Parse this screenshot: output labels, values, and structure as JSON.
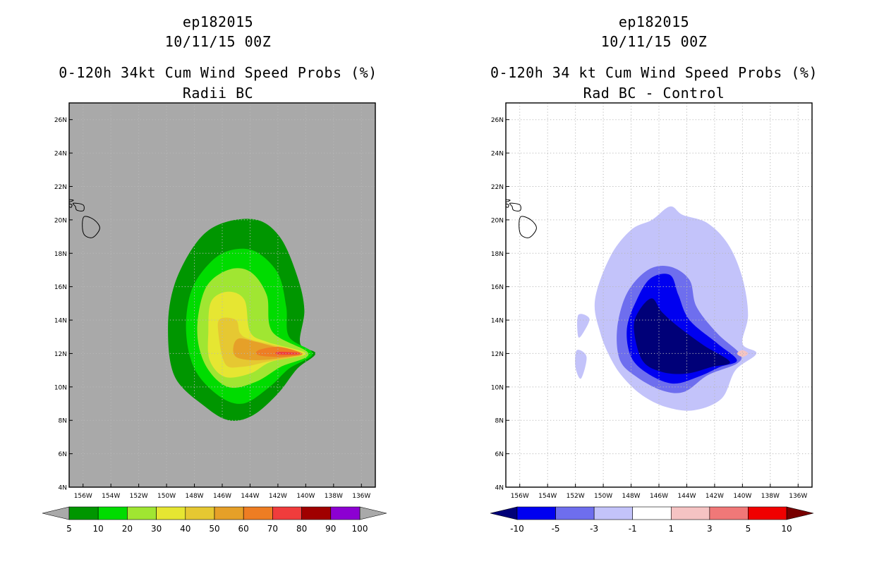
{
  "chart_data": [
    {
      "type": "contour",
      "title_lines": [
        "ep182015",
        "10/11/15 00Z",
        "0-120h 34kt Cum Wind Speed Probs (%)",
        "Radii BC"
      ],
      "xlabel": "",
      "ylabel": "",
      "xlim": [
        -157,
        -135
      ],
      "ylim": [
        4,
        27
      ],
      "x_tick_labels": [
        "156W",
        "154W",
        "152W",
        "150W",
        "148W",
        "146W",
        "144W",
        "142W",
        "140W",
        "138W",
        "136W"
      ],
      "y_tick_labels": [
        "4N",
        "6N",
        "8N",
        "10N",
        "12N",
        "14N",
        "16N",
        "18N",
        "20N",
        "22N",
        "24N",
        "26N"
      ],
      "background": "#a9a9a9",
      "colorbar": {
        "labels": [
          "5",
          "10",
          "20",
          "30",
          "40",
          "50",
          "60",
          "70",
          "80",
          "90",
          "100"
        ],
        "colors": [
          "#009600",
          "#00dc00",
          "#a0e632",
          "#e6e632",
          "#e6c832",
          "#e6a028",
          "#ee7d23",
          "#f03c3c",
          "#a00000",
          "#8c00d2"
        ],
        "end_arrow_color": "#a9a9a9"
      },
      "contours": [
        {
          "level": 5,
          "color": "#009600",
          "points": [
            [
              -149.9,
              13.5
            ],
            [
              -149.4,
              16.2
            ],
            [
              -147.8,
              18.7
            ],
            [
              -146.0,
              19.8
            ],
            [
              -143.5,
              20.0
            ],
            [
              -141.8,
              18.9
            ],
            [
              -140.6,
              16.6
            ],
            [
              -140.1,
              14.6
            ],
            [
              -140.4,
              12.6
            ],
            [
              -139.3,
              12.0
            ],
            [
              -140.6,
              11.1
            ],
            [
              -142.0,
              9.6
            ],
            [
              -143.8,
              8.3
            ],
            [
              -145.5,
              8.0
            ],
            [
              -147.2,
              8.8
            ],
            [
              -149.4,
              10.6
            ]
          ]
        },
        {
          "level": 10,
          "color": "#00dc00",
          "points": [
            [
              -148.6,
              13.4
            ],
            [
              -148.2,
              15.8
            ],
            [
              -146.8,
              17.5
            ],
            [
              -145.3,
              18.2
            ],
            [
              -143.6,
              18.1
            ],
            [
              -142.0,
              16.8
            ],
            [
              -141.4,
              14.8
            ],
            [
              -141.2,
              13.0
            ],
            [
              -139.5,
              12.0
            ],
            [
              -141.2,
              11.1
            ],
            [
              -142.6,
              10.0
            ],
            [
              -144.5,
              9.0
            ],
            [
              -146.3,
              9.5
            ],
            [
              -148.0,
              11.1
            ]
          ]
        },
        {
          "level": 20,
          "color": "#a0e632",
          "points": [
            [
              -147.8,
              13.4
            ],
            [
              -147.2,
              15.9
            ],
            [
              -145.6,
              17.0
            ],
            [
              -144.0,
              16.9
            ],
            [
              -142.8,
              15.5
            ],
            [
              -142.4,
              13.3
            ],
            [
              -139.8,
              12.0
            ],
            [
              -141.8,
              11.2
            ],
            [
              -143.6,
              10.3
            ],
            [
              -145.6,
              10.0
            ],
            [
              -147.2,
              11.3
            ]
          ]
        },
        {
          "level": 30,
          "color": "#e6e632",
          "points": [
            [
              -147.0,
              13.3
            ],
            [
              -146.8,
              15.1
            ],
            [
              -145.6,
              15.7
            ],
            [
              -144.4,
              15.2
            ],
            [
              -144.0,
              13.3
            ],
            [
              -142.8,
              12.7
            ],
            [
              -140.0,
              12.0
            ],
            [
              -142.5,
              11.5
            ],
            [
              -144.0,
              10.8
            ],
            [
              -145.8,
              10.6
            ],
            [
              -146.9,
              11.6
            ]
          ]
        },
        {
          "level": 40,
          "color": "#e6c832",
          "points": [
            [
              -146.3,
              13.4
            ],
            [
              -146.1,
              14.1
            ],
            [
              -145.0,
              14.0
            ],
            [
              -144.7,
              13.2
            ],
            [
              -143.8,
              12.8
            ],
            [
              -140.2,
              12.0
            ],
            [
              -142.8,
              11.5
            ],
            [
              -144.6,
              11.2
            ],
            [
              -145.8,
              11.4
            ]
          ]
        },
        {
          "level": 50,
          "color": "#e6a028",
          "points": [
            [
              -145.2,
              12.4
            ],
            [
              -144.8,
              12.9
            ],
            [
              -143.6,
              12.7
            ],
            [
              -142.2,
              12.4
            ],
            [
              -140.3,
              12.0
            ],
            [
              -142.0,
              11.7
            ],
            [
              -143.8,
              11.6
            ],
            [
              -145.0,
              11.8
            ]
          ]
        },
        {
          "level": 60,
          "color": "#ee7d23",
          "points": [
            [
              -143.4,
              12.2
            ],
            [
              -142.0,
              12.4
            ],
            [
              -140.5,
              12.1
            ],
            [
              -140.4,
              11.9
            ],
            [
              -142.0,
              11.8
            ],
            [
              -143.4,
              11.9
            ]
          ]
        },
        {
          "level": 70,
          "color": "#f03c3c",
          "points": [
            [
              -142.0,
              12.1
            ],
            [
              -140.6,
              12.05
            ],
            [
              -140.6,
              11.95
            ],
            [
              -142.0,
              11.95
            ]
          ]
        }
      ]
    },
    {
      "type": "contour",
      "title_lines": [
        "ep182015",
        "10/11/15 00Z",
        "0-120h 34 kt Cum Wind Speed Probs (%)",
        "Rad BC - Control"
      ],
      "xlabel": "",
      "ylabel": "",
      "xlim": [
        -157,
        -135
      ],
      "ylim": [
        4,
        27
      ],
      "x_tick_labels": [
        "156W",
        "154W",
        "152W",
        "150W",
        "148W",
        "146W",
        "144W",
        "142W",
        "140W",
        "138W",
        "136W"
      ],
      "y_tick_labels": [
        "4N",
        "6N",
        "8N",
        "10N",
        "12N",
        "14N",
        "16N",
        "18N",
        "20N",
        "22N",
        "24N",
        "26N"
      ],
      "background": "#ffffff",
      "colorbar": {
        "labels": [
          "-10",
          "-5",
          "-3",
          "-1",
          "1",
          "3",
          "5",
          "10"
        ],
        "colors": [
          "#0000f0",
          "#6e6eee",
          "#c3c3fa",
          "#ffffff",
          "#f5c3c3",
          "#f07878",
          "#f00000"
        ],
        "left_arrow_color": "#000078",
        "right_arrow_color": "#780000"
      },
      "contours": [
        {
          "level": -1,
          "color": "#c3c3fa",
          "points": [
            [
              -150.6,
              15.2
            ],
            [
              -149.5,
              17.8
            ],
            [
              -148.0,
              19.4
            ],
            [
              -146.5,
              20.0
            ],
            [
              -145.2,
              20.8
            ],
            [
              -144.3,
              20.3
            ],
            [
              -142.5,
              19.8
            ],
            [
              -141.0,
              18.5
            ],
            [
              -140.0,
              16.5
            ],
            [
              -139.6,
              14.3
            ],
            [
              -140.0,
              12.6
            ],
            [
              -139.0,
              12.0
            ],
            [
              -140.5,
              11.0
            ],
            [
              -141.5,
              9.3
            ],
            [
              -143.5,
              8.6
            ],
            [
              -145.5,
              8.8
            ],
            [
              -147.2,
              9.5
            ],
            [
              -148.5,
              10.5
            ],
            [
              -149.4,
              11.6
            ],
            [
              -150.2,
              13.2
            ]
          ]
        },
        {
          "level": -1,
          "color": "#c3c3fa",
          "points": [
            [
              -151.8,
              14.3
            ],
            [
              -151.0,
              14.1
            ],
            [
              -151.4,
              13.3
            ],
            [
              -151.8,
              13.0
            ]
          ]
        },
        {
          "level": -1,
          "color": "#c3c3fa",
          "points": [
            [
              -151.9,
              12.2
            ],
            [
              -151.2,
              11.8
            ],
            [
              -151.6,
              10.5
            ],
            [
              -152.0,
              11.2
            ]
          ]
        },
        {
          "level": -3,
          "color": "#6e6eee",
          "points": [
            [
              -149.0,
              13.5
            ],
            [
              -148.3,
              15.6
            ],
            [
              -146.8,
              17.0
            ],
            [
              -145.2,
              17.2
            ],
            [
              -143.8,
              16.4
            ],
            [
              -143.3,
              14.8
            ],
            [
              -141.8,
              13.2
            ],
            [
              -140.2,
              12.0
            ],
            [
              -140.4,
              11.4
            ],
            [
              -142.5,
              10.7
            ],
            [
              -144.2,
              9.7
            ],
            [
              -145.8,
              9.8
            ],
            [
              -147.6,
              10.6
            ],
            [
              -148.8,
              11.6
            ]
          ]
        },
        {
          "level": -5,
          "color": "#0000f0",
          "points": [
            [
              -148.3,
              13.5
            ],
            [
              -147.6,
              15.2
            ],
            [
              -146.6,
              16.5
            ],
            [
              -145.2,
              16.7
            ],
            [
              -144.6,
              15.5
            ],
            [
              -143.8,
              14.0
            ],
            [
              -141.8,
              12.6
            ],
            [
              -140.4,
              11.6
            ],
            [
              -141.6,
              11.2
            ],
            [
              -143.2,
              10.6
            ],
            [
              -145.0,
              10.2
            ],
            [
              -146.8,
              10.8
            ],
            [
              -148.0,
              11.8
            ]
          ]
        },
        {
          "level": -10,
          "color": "#000078",
          "points": [
            [
              -147.8,
              13.5
            ],
            [
              -147.4,
              14.6
            ],
            [
              -146.5,
              15.3
            ],
            [
              -145.8,
              14.5
            ],
            [
              -144.6,
              13.6
            ],
            [
              -142.8,
              12.5
            ],
            [
              -140.9,
              11.5
            ],
            [
              -142.2,
              11.2
            ],
            [
              -144.0,
              10.8
            ],
            [
              -145.8,
              10.9
            ],
            [
              -147.2,
              11.6
            ]
          ]
        },
        {
          "level": 1,
          "color": "#f5c3c3",
          "points": [
            [
              -140.0,
              12.2
            ],
            [
              -139.6,
              12.0
            ],
            [
              -140.0,
              11.8
            ],
            [
              -140.4,
              12.0
            ]
          ]
        }
      ]
    }
  ]
}
